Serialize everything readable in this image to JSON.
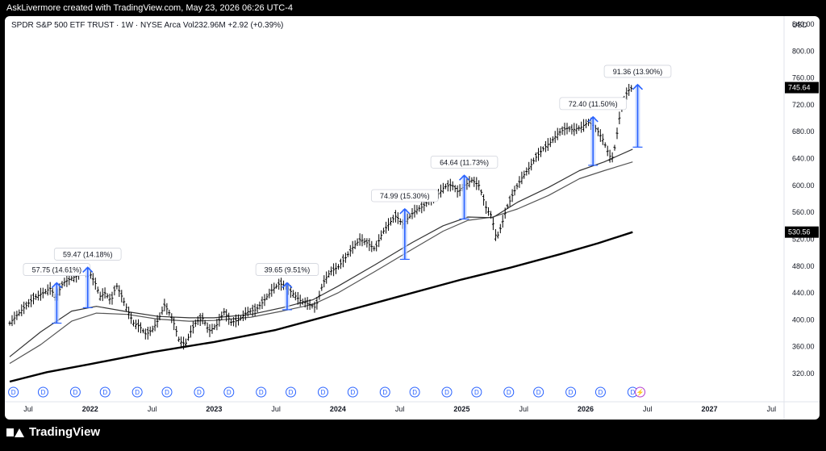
{
  "header": {
    "attribution": "AskLivermore created with TradingView.com, May 23, 2026 06:26 UTC-4"
  },
  "symbol": {
    "text": "SPDR S&P 500 ETF TRUST · 1W · NYSE Arca  Vol232.96M  +2.92 (+0.39%)"
  },
  "footer": {
    "brand": "TradingView"
  },
  "chart_data": {
    "type": "line",
    "title": "SPDR S&P 500 ETF TRUST · 1W · NYSE Arca",
    "ylabel": "USD",
    "ylim": [
      300,
      860
    ],
    "y_ticks": [
      320,
      360,
      400,
      440,
      480,
      520,
      560,
      600,
      640,
      680,
      720,
      760,
      800,
      840
    ],
    "x_range": [
      2021.35,
      2027.55
    ],
    "x_ticks": [
      {
        "t": 2021.5,
        "label": "Jul",
        "bold": false
      },
      {
        "t": 2022.0,
        "label": "2022",
        "bold": true
      },
      {
        "t": 2022.5,
        "label": "Jul",
        "bold": false
      },
      {
        "t": 2023.0,
        "label": "2023",
        "bold": true
      },
      {
        "t": 2023.5,
        "label": "Jul",
        "bold": false
      },
      {
        "t": 2024.0,
        "label": "2024",
        "bold": true
      },
      {
        "t": 2024.5,
        "label": "Jul",
        "bold": false
      },
      {
        "t": 2025.0,
        "label": "2025",
        "bold": true
      },
      {
        "t": 2025.5,
        "label": "Jul",
        "bold": false
      },
      {
        "t": 2026.0,
        "label": "2026",
        "bold": true
      },
      {
        "t": 2026.5,
        "label": "Jul",
        "bold": false
      },
      {
        "t": 2027.0,
        "label": "2027",
        "bold": true
      },
      {
        "t": 2027.5,
        "label": "Jul",
        "bold": false
      }
    ],
    "price_labels": [
      {
        "value": 745.64,
        "text": "745.64"
      },
      {
        "value": 530.56,
        "text": "530.56"
      }
    ],
    "price_series": [
      [
        2021.35,
        395
      ],
      [
        2021.45,
        415
      ],
      [
        2021.55,
        433
      ],
      [
        2021.62,
        440
      ],
      [
        2021.68,
        447
      ],
      [
        2021.72,
        432
      ],
      [
        2021.78,
        455
      ],
      [
        2021.85,
        462
      ],
      [
        2021.9,
        466
      ],
      [
        2021.95,
        475
      ],
      [
        2022.0,
        468
      ],
      [
        2022.04,
        455
      ],
      [
        2022.08,
        435
      ],
      [
        2022.12,
        440
      ],
      [
        2022.17,
        428
      ],
      [
        2022.21,
        452
      ],
      [
        2022.25,
        437
      ],
      [
        2022.3,
        415
      ],
      [
        2022.35,
        395
      ],
      [
        2022.4,
        390
      ],
      [
        2022.45,
        378
      ],
      [
        2022.5,
        385
      ],
      [
        2022.55,
        400
      ],
      [
        2022.6,
        422
      ],
      [
        2022.64,
        410
      ],
      [
        2022.68,
        393
      ],
      [
        2022.72,
        368
      ],
      [
        2022.77,
        364
      ],
      [
        2022.81,
        382
      ],
      [
        2022.86,
        398
      ],
      [
        2022.91,
        402
      ],
      [
        2022.96,
        383
      ],
      [
        2023.02,
        392
      ],
      [
        2023.08,
        412
      ],
      [
        2023.14,
        396
      ],
      [
        2023.2,
        400
      ],
      [
        2023.27,
        412
      ],
      [
        2023.34,
        415
      ],
      [
        2023.41,
        430
      ],
      [
        2023.47,
        445
      ],
      [
        2023.53,
        454
      ],
      [
        2023.58,
        450
      ],
      [
        2023.63,
        440
      ],
      [
        2023.7,
        428
      ],
      [
        2023.76,
        424
      ],
      [
        2023.82,
        418
      ],
      [
        2023.88,
        455
      ],
      [
        2023.94,
        472
      ],
      [
        2024.0,
        478
      ],
      [
        2024.06,
        492
      ],
      [
        2024.12,
        508
      ],
      [
        2024.18,
        520
      ],
      [
        2024.24,
        514
      ],
      [
        2024.3,
        505
      ],
      [
        2024.36,
        530
      ],
      [
        2024.42,
        545
      ],
      [
        2024.47,
        555
      ],
      [
        2024.52,
        542
      ],
      [
        2024.57,
        552
      ],
      [
        2024.62,
        562
      ],
      [
        2024.68,
        568
      ],
      [
        2024.74,
        578
      ],
      [
        2024.8,
        585
      ],
      [
        2024.86,
        598
      ],
      [
        2024.92,
        601
      ],
      [
        2024.97,
        590
      ],
      [
        2025.02,
        600
      ],
      [
        2025.08,
        608
      ],
      [
        2025.14,
        600
      ],
      [
        2025.2,
        565
      ],
      [
        2025.24,
        555
      ],
      [
        2025.28,
        520
      ],
      [
        2025.32,
        540
      ],
      [
        2025.36,
        565
      ],
      [
        2025.42,
        590
      ],
      [
        2025.48,
        610
      ],
      [
        2025.54,
        625
      ],
      [
        2025.6,
        642
      ],
      [
        2025.66,
        655
      ],
      [
        2025.72,
        665
      ],
      [
        2025.78,
        678
      ],
      [
        2025.84,
        685
      ],
      [
        2025.9,
        683
      ],
      [
        2025.96,
        686
      ],
      [
        2026.02,
        694
      ],
      [
        2026.06,
        690
      ],
      [
        2026.1,
        680
      ],
      [
        2026.14,
        668
      ],
      [
        2026.18,
        650
      ],
      [
        2026.21,
        638
      ],
      [
        2026.24,
        660
      ],
      [
        2026.27,
        698
      ],
      [
        2026.3,
        722
      ],
      [
        2026.34,
        741
      ],
      [
        2026.38,
        745.64
      ]
    ],
    "ma_lines": [
      {
        "name": "ma-short",
        "color": "#555555",
        "width": 1.2,
        "points": [
          [
            2021.35,
            335
          ],
          [
            2021.6,
            363
          ],
          [
            2021.85,
            398
          ],
          [
            2022.05,
            410
          ],
          [
            2022.3,
            408
          ],
          [
            2022.55,
            401
          ],
          [
            2022.8,
            398
          ],
          [
            2023.0,
            399
          ],
          [
            2023.3,
            404
          ],
          [
            2023.55,
            413
          ],
          [
            2023.8,
            423
          ],
          [
            2024.0,
            440
          ],
          [
            2024.3,
            472
          ],
          [
            2024.6,
            505
          ],
          [
            2024.85,
            532
          ],
          [
            2025.05,
            548
          ],
          [
            2025.25,
            553
          ],
          [
            2025.45,
            565
          ],
          [
            2025.7,
            585
          ],
          [
            2025.95,
            610
          ],
          [
            2026.15,
            622
          ],
          [
            2026.38,
            635
          ]
        ]
      },
      {
        "name": "ma-mid",
        "color": "#333333",
        "width": 1.2,
        "points": [
          [
            2021.35,
            345
          ],
          [
            2021.6,
            382
          ],
          [
            2021.85,
            413
          ],
          [
            2022.05,
            420
          ],
          [
            2022.3,
            412
          ],
          [
            2022.55,
            405
          ],
          [
            2022.8,
            403
          ],
          [
            2023.0,
            403
          ],
          [
            2023.3,
            408
          ],
          [
            2023.55,
            418
          ],
          [
            2023.8,
            430
          ],
          [
            2024.0,
            450
          ],
          [
            2024.3,
            482
          ],
          [
            2024.6,
            515
          ],
          [
            2024.85,
            540
          ],
          [
            2025.05,
            553
          ],
          [
            2025.25,
            552
          ],
          [
            2025.45,
            575
          ],
          [
            2025.7,
            597
          ],
          [
            2025.95,
            622
          ],
          [
            2026.15,
            635
          ],
          [
            2026.38,
            654
          ]
        ]
      },
      {
        "name": "ma-long",
        "color": "#000000",
        "width": 2.4,
        "points": [
          [
            2021.35,
            308
          ],
          [
            2021.65,
            322
          ],
          [
            2022.0,
            334
          ],
          [
            2022.5,
            352
          ],
          [
            2023.0,
            367
          ],
          [
            2023.5,
            385
          ],
          [
            2024.0,
            410
          ],
          [
            2024.5,
            435
          ],
          [
            2025.0,
            460
          ],
          [
            2025.4,
            478
          ],
          [
            2025.8,
            498
          ],
          [
            2026.1,
            514
          ],
          [
            2026.38,
            530.56
          ]
        ]
      }
    ],
    "annotations": [
      {
        "label": "57.75 (14.61%)",
        "t": 2021.73,
        "from": 395,
        "to": 455,
        "direction": "up"
      },
      {
        "label": "59.47 (14.18%)",
        "t": 2021.98,
        "from": 418,
        "to": 478,
        "direction": "up"
      },
      {
        "label": "39.65 (9.51%)",
        "t": 2023.59,
        "from": 415,
        "to": 455,
        "direction": "up"
      },
      {
        "label": "74.99 (15.30%)",
        "t": 2024.54,
        "from": 490,
        "to": 565,
        "direction": "up"
      },
      {
        "label": "64.64 (11.73%)",
        "t": 2025.02,
        "from": 550,
        "to": 615,
        "direction": "up"
      },
      {
        "label": "72.40 (11.50%)",
        "t": 2026.06,
        "from": 630,
        "to": 702,
        "direction": "up"
      },
      {
        "label": "91.36 (13.90%)",
        "t": 2026.42,
        "from": 657,
        "to": 750,
        "direction": "up"
      }
    ],
    "dividends": [
      2021.38,
      2021.62,
      2021.88,
      2022.12,
      2022.38,
      2022.62,
      2022.88,
      2023.12,
      2023.38,
      2023.62,
      2023.88,
      2024.12,
      2024.38,
      2024.62,
      2024.88,
      2025.12,
      2025.38,
      2025.62,
      2025.88,
      2026.12,
      2026.38
    ],
    "event_flag": {
      "t": 2026.44,
      "symbol": "⚡"
    },
    "colors": {
      "bar": "#000000",
      "annotation": "#2962ff",
      "annotation_fill": "#bcd0ff",
      "price_tag_bg": "#000000",
      "price_tag_fg": "#ffffff",
      "dividend": "#2962ff"
    }
  }
}
